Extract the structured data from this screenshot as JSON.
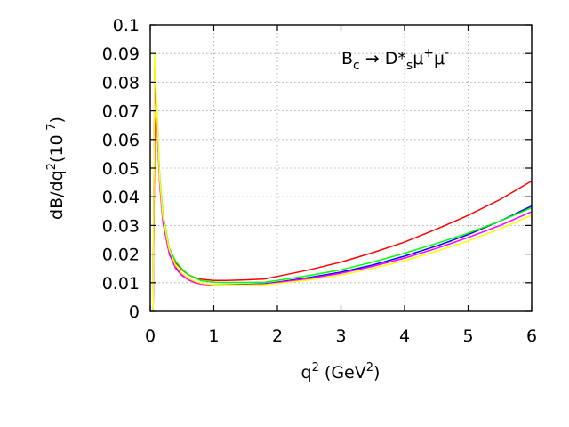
{
  "chart_data": {
    "type": "line",
    "title": "",
    "annotation": {
      "base": "B",
      "base_sub": "c",
      "arrow": " → D*",
      "mid_sub": "s",
      "mu": "μ",
      "mu_sup_plus": "+",
      "mu2": "μ",
      "mu_sup_minus": "-"
    },
    "xlabel": {
      "base": "q",
      "sup": "2",
      "unit_open": " (GeV",
      "unit_sup": "2",
      "unit_close": ")"
    },
    "ylabel": {
      "part1": "dB/dq",
      "sup1": "2",
      "part2": "(10",
      "sup2": "-7",
      "part3": ")"
    },
    "xlim": [
      0,
      6
    ],
    "ylim": [
      0,
      0.1
    ],
    "xticks": [
      "0",
      "1",
      "2",
      "3",
      "4",
      "5",
      "6"
    ],
    "yticks": [
      "0",
      "0.01",
      "0.02",
      "0.03",
      "0.04",
      "0.05",
      "0.06",
      "0.07",
      "0.08",
      "0.09",
      "0.1"
    ],
    "grid": true,
    "series": [
      {
        "color": "#ff0000",
        "x": [
          0.045,
          0.07,
          0.1,
          0.15,
          0.2,
          0.3,
          0.4,
          0.5,
          0.6,
          0.7,
          0.8,
          1.0,
          1.2,
          1.5,
          1.8,
          2.0,
          2.5,
          3.0,
          3.5,
          4.0,
          4.5,
          5.0,
          5.5,
          6.0
        ],
        "y": [
          0.0,
          0.06,
          0.07,
          0.045,
          0.033,
          0.022,
          0.017,
          0.0145,
          0.0128,
          0.0118,
          0.0112,
          0.0108,
          0.0108,
          0.011,
          0.0113,
          0.0122,
          0.0145,
          0.0172,
          0.0205,
          0.0242,
          0.0287,
          0.0335,
          0.039,
          0.0455
        ]
      },
      {
        "color": "#0000ff",
        "x": [
          0.045,
          0.07,
          0.1,
          0.15,
          0.2,
          0.3,
          0.4,
          0.5,
          0.6,
          0.7,
          0.8,
          1.0,
          1.2,
          1.5,
          1.8,
          2.0,
          2.5,
          3.0,
          3.5,
          4.0,
          4.5,
          5.0,
          5.5,
          6.0
        ],
        "y": [
          0.0,
          0.085,
          0.07,
          0.045,
          0.032,
          0.021,
          0.0155,
          0.0128,
          0.0112,
          0.0102,
          0.0097,
          0.0093,
          0.0093,
          0.0094,
          0.0096,
          0.0102,
          0.0118,
          0.0137,
          0.0162,
          0.0193,
          0.0228,
          0.0268,
          0.0315,
          0.0368
        ]
      },
      {
        "color": "#00ff00",
        "x": [
          0.045,
          0.07,
          0.1,
          0.15,
          0.2,
          0.3,
          0.4,
          0.5,
          0.6,
          0.7,
          0.8,
          1.0,
          1.2,
          1.5,
          1.8,
          2.0,
          2.5,
          3.0,
          3.5,
          4.0,
          4.5,
          5.0,
          5.5,
          6.0
        ],
        "y": [
          0.0,
          0.075,
          0.072,
          0.047,
          0.034,
          0.022,
          0.0175,
          0.0148,
          0.0128,
          0.0117,
          0.0107,
          0.0102,
          0.0101,
          0.0101,
          0.0102,
          0.0108,
          0.0125,
          0.0145,
          0.0172,
          0.0203,
          0.0237,
          0.0273,
          0.0315,
          0.0362
        ]
      },
      {
        "color": "#ff00ff",
        "x": [
          0.045,
          0.07,
          0.1,
          0.15,
          0.2,
          0.3,
          0.4,
          0.5,
          0.6,
          0.7,
          0.8,
          1.0,
          1.2,
          1.5,
          1.8,
          2.0,
          2.5,
          3.0,
          3.5,
          4.0,
          4.5,
          5.0,
          5.5,
          6.0
        ],
        "y": [
          0.0,
          0.082,
          0.068,
          0.044,
          0.031,
          0.02,
          0.015,
          0.0125,
          0.011,
          0.01,
          0.0095,
          0.0091,
          0.0091,
          0.0092,
          0.0094,
          0.01,
          0.0115,
          0.0133,
          0.0157,
          0.0186,
          0.022,
          0.0258,
          0.03,
          0.0348
        ]
      },
      {
        "color": "#ffff00",
        "x": [
          0.045,
          0.07,
          0.1,
          0.15,
          0.2,
          0.3,
          0.4,
          0.5,
          0.6,
          0.7,
          0.8,
          1.0,
          1.2,
          1.5,
          1.8,
          2.0,
          2.5,
          3.0,
          3.5,
          4.0,
          4.5,
          5.0,
          5.5,
          6.0
        ],
        "y": [
          0.0,
          0.09,
          0.072,
          0.046,
          0.033,
          0.0215,
          0.016,
          0.0132,
          0.0115,
          0.0105,
          0.0098,
          0.0093,
          0.0092,
          0.0092,
          0.0093,
          0.0097,
          0.011,
          0.0127,
          0.015,
          0.0177,
          0.021,
          0.0246,
          0.0288,
          0.0336
        ]
      }
    ]
  }
}
